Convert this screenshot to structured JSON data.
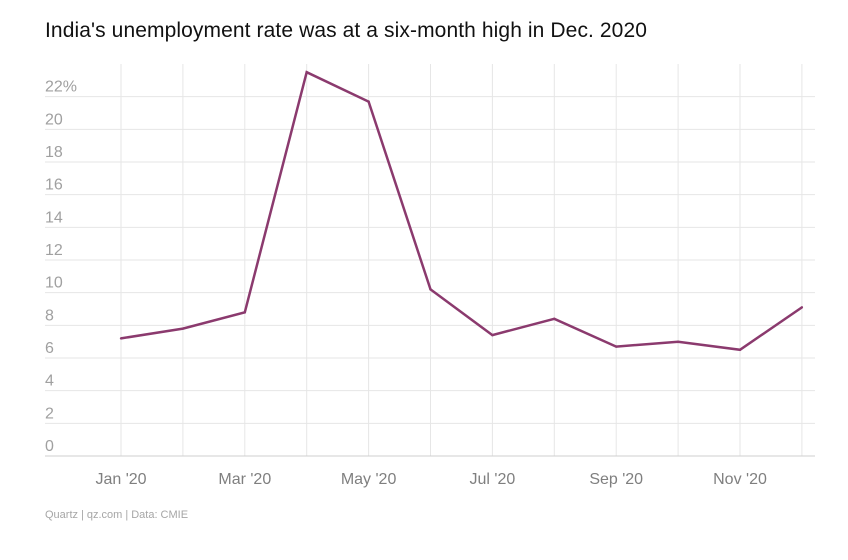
{
  "chart_data": {
    "type": "line",
    "title": "India's unemployment rate was at a six-month high in Dec. 2020",
    "xlabel": "",
    "ylabel": "",
    "x": [
      "Jan '20",
      "Feb '20",
      "Mar '20",
      "Apr '20",
      "May '20",
      "Jun '20",
      "Jul '20",
      "Aug '20",
      "Sep '20",
      "Oct '20",
      "Nov '20",
      "Dec '20"
    ],
    "x_tick_labels": [
      "Jan '20",
      "Mar '20",
      "May '20",
      "Jul '20",
      "Sep '20",
      "Nov '20"
    ],
    "y_tick_labels": [
      "0",
      "2",
      "4",
      "6",
      "8",
      "10",
      "12",
      "14",
      "16",
      "18",
      "20",
      "22%"
    ],
    "ylim": [
      0,
      24
    ],
    "grid": true,
    "series": [
      {
        "values": [
          7.2,
          7.8,
          8.8,
          23.5,
          21.7,
          10.2,
          7.4,
          8.4,
          6.7,
          7.0,
          6.5,
          9.1
        ]
      }
    ],
    "colors": {
      "line": "#8b3a6e",
      "grid": "#e6e6e6",
      "axis": "#cfcfcf"
    }
  },
  "footer": {
    "source": "Quartz",
    "site": "qz.com",
    "data": "Data: CMIE"
  }
}
